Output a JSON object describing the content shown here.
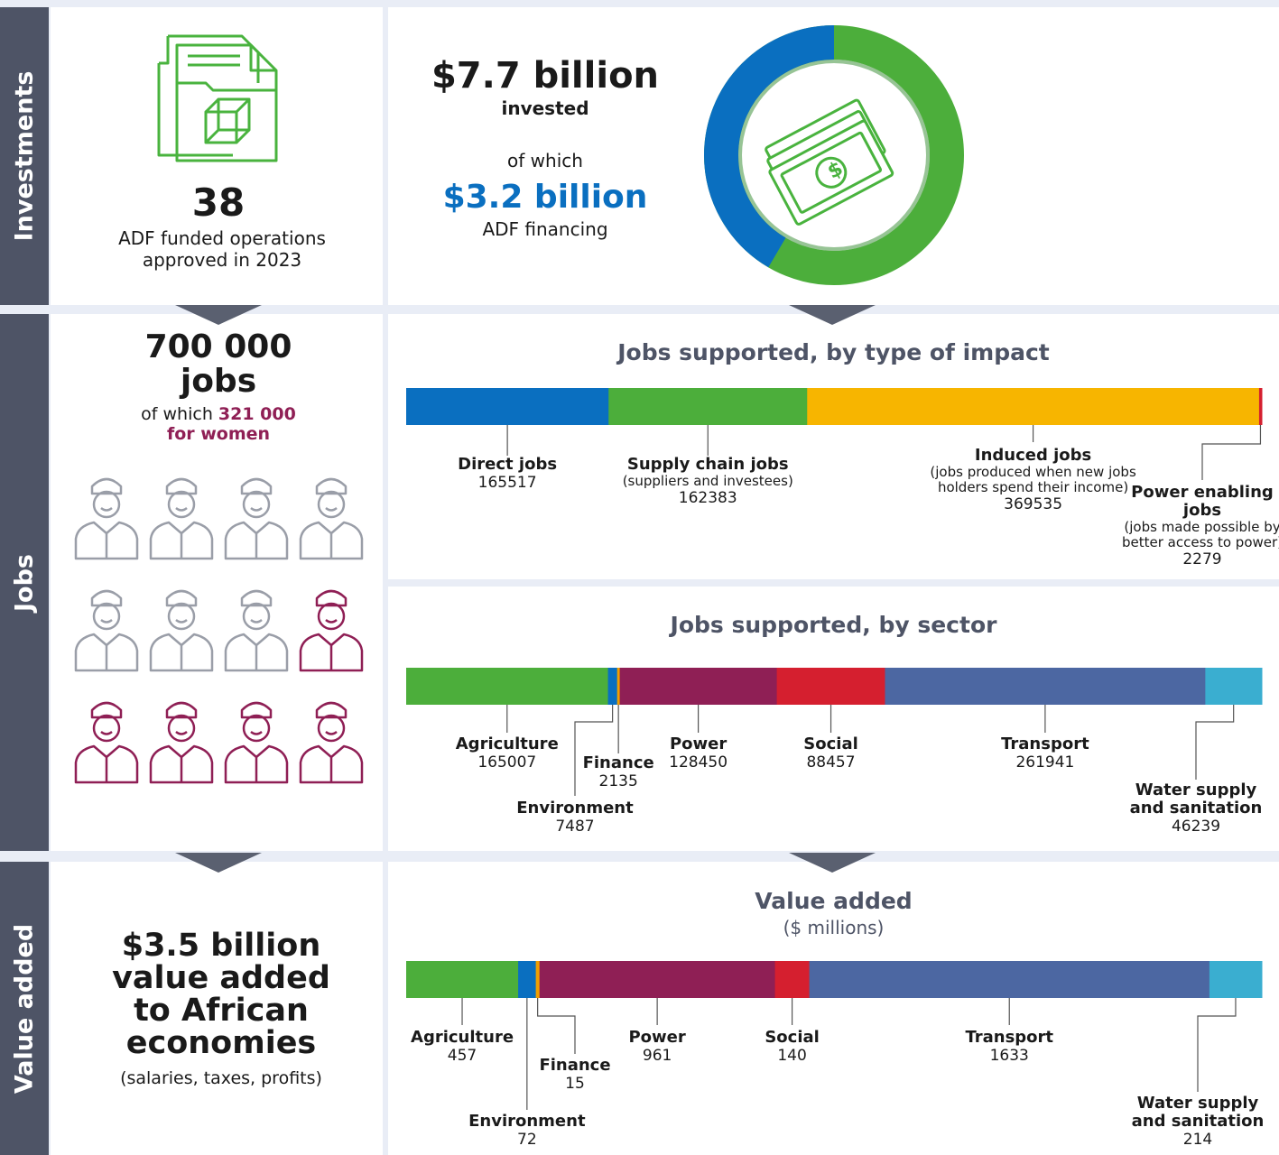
{
  "sections": {
    "investments": "Investments",
    "jobs": "Jobs",
    "value_added": "Value added"
  },
  "operations": {
    "count": "38",
    "text_line1": "ADF funded operations",
    "text_line2": "approved in 2023"
  },
  "investment": {
    "total": "$7.7 billion",
    "invested": "invested",
    "of_which": "of which",
    "adf": "$3.2 billion",
    "adf_label": "ADF financing",
    "adf_share": 0.416
  },
  "jobs": {
    "total": "700 000",
    "unit": "jobs",
    "of_which": "of which",
    "women": "321 000",
    "women_label": "for women"
  },
  "value_added_summary": {
    "line1": "$3.5 billion",
    "line2": "value added",
    "line3": "to African",
    "line4": "economies",
    "note": "(salaries, taxes, profits)"
  },
  "colors": {
    "blue": "#0a6fc0",
    "green": "#4cae3b",
    "yellow": "#f7b500",
    "red": "#d51f2f",
    "maroon": "#8f1f55",
    "slate": "#4c67a2",
    "teal": "#3aaed0",
    "orange": "#f0a000",
    "icon_green": "#49b33e",
    "icon_grey": "#9a9ea8",
    "icon_maroon": "#8f1f55"
  },
  "chart_data": [
    {
      "type": "bar",
      "title": "Jobs supported, by type of impact",
      "categories": [
        "Direct jobs",
        "Supply chain jobs",
        "Induced jobs",
        "Power enabling jobs"
      ],
      "notes": [
        "",
        "(suppliers and investees)",
        "(jobs produced when new jobs holders spend their income)",
        "(jobs made possible by better access to power)"
      ],
      "values": [
        165517,
        162383,
        369535,
        2279
      ],
      "labels": [
        "165517",
        "162383",
        "369535",
        "2279"
      ]
    },
    {
      "type": "bar",
      "title": "Jobs supported, by sector",
      "categories": [
        "Agriculture",
        "Environment",
        "Finance",
        "Power",
        "Social",
        "Transport",
        "Water supply and sanitation"
      ],
      "values": [
        165007,
        7487,
        2135,
        128450,
        88457,
        261941,
        46239
      ],
      "labels": [
        "165007",
        "7487",
        "2135",
        "128450",
        "88457",
        "261941",
        "46239"
      ]
    },
    {
      "type": "bar",
      "title": "Value added",
      "subtitle": "($ millions)",
      "categories": [
        "Agriculture",
        "Environment",
        "Finance",
        "Power",
        "Social",
        "Transport",
        "Water supply and sanitation"
      ],
      "values": [
        457,
        72,
        15,
        961,
        140,
        1633,
        214
      ],
      "labels": [
        "457",
        "72",
        "15",
        "961",
        "140",
        "1633",
        "214"
      ]
    }
  ]
}
